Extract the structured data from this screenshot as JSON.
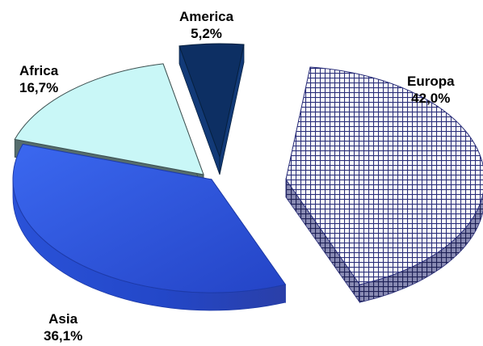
{
  "chart_data": {
    "type": "pie",
    "style": "3d-exploded",
    "slices": [
      {
        "label": "Europa",
        "value": 42.0,
        "value_label": "42,0%",
        "color": "#2b2f7a",
        "fill": "grid-pattern"
      },
      {
        "label": "Asia",
        "value": 36.1,
        "value_label": "36,1%",
        "color": "#2a52d8"
      },
      {
        "label": "Africa",
        "value": 16.7,
        "value_label": "16,7%",
        "color": "#c9f7f7"
      },
      {
        "label": "America",
        "value": 5.2,
        "value_label": "5,2%",
        "color": "#0b2c5e"
      }
    ]
  }
}
